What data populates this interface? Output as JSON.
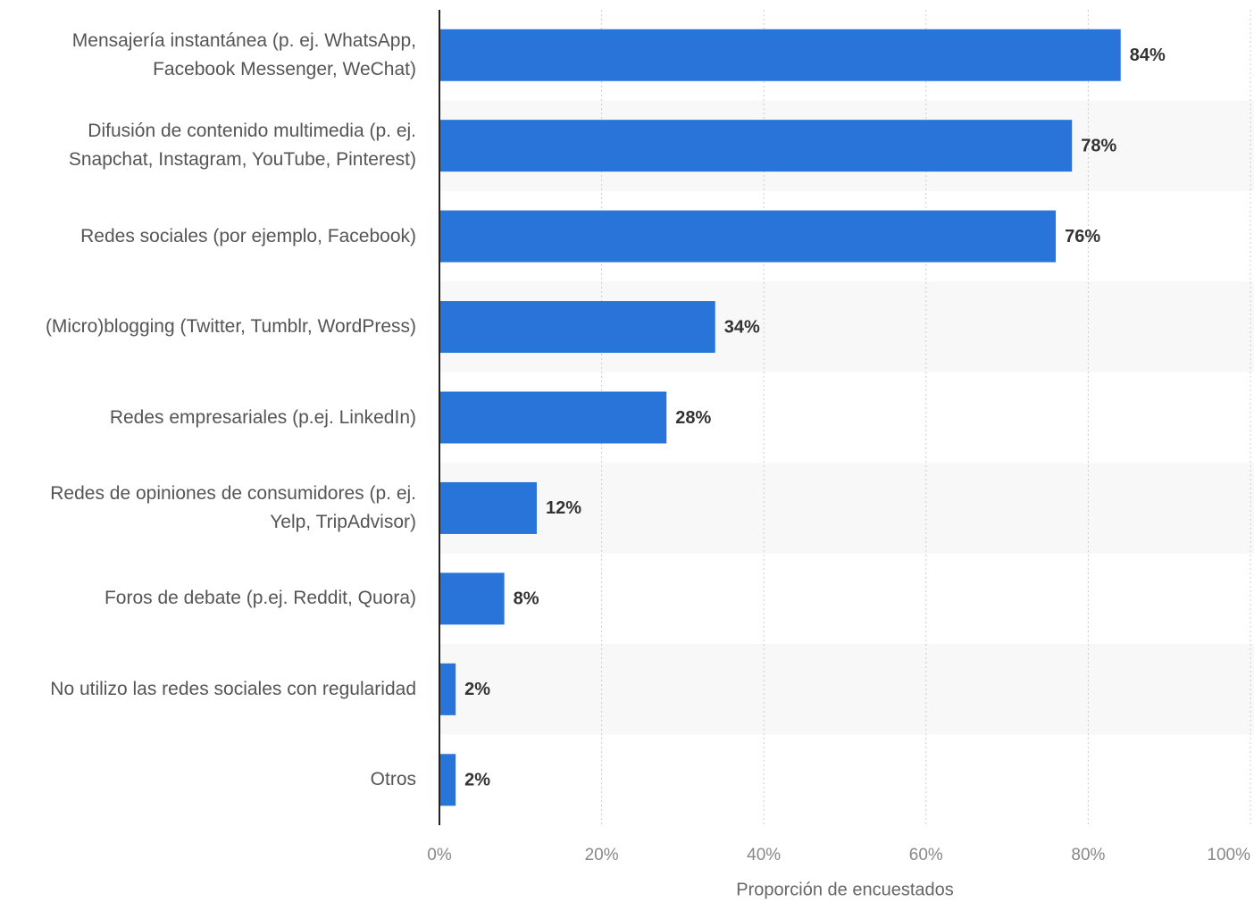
{
  "chart_data": {
    "type": "hbar",
    "categories": [
      "Mensajería instantánea (p. ej. WhatsApp, Facebook Messenger, WeChat)",
      "Difusión de contenido multimedia (p. ej. Snapchat, Instagram, YouTube, Pinterest)",
      "Redes sociales (por ejemplo, Facebook)",
      "(Micro)blogging (Twitter, Tumblr, WordPress)",
      "Redes empresariales (p.ej. LinkedIn)",
      "Redes de opiniones de consumidores (p. ej. Yelp, TripAdvisor)",
      "Foros de debate (p.ej. Reddit, Quora)",
      "No utilizo las redes sociales con regularidad",
      "Otros"
    ],
    "values": [
      84,
      78,
      76,
      34,
      28,
      12,
      8,
      2,
      2
    ],
    "value_labels": [
      "84%",
      "78%",
      "76%",
      "34%",
      "28%",
      "12%",
      "8%",
      "2%",
      "2%"
    ],
    "color": "#2874d9",
    "xlim": [
      0,
      100
    ],
    "xticks": [
      {
        "value": 0,
        "label": "0%"
      },
      {
        "value": 20,
        "label": "20%"
      },
      {
        "value": 40,
        "label": "40%"
      },
      {
        "value": 60,
        "label": "60%"
      },
      {
        "value": 80,
        "label": "80%"
      },
      {
        "value": 100,
        "label": "100%"
      }
    ],
    "xlabel": "Proporción de encuestados",
    "grid": true
  }
}
